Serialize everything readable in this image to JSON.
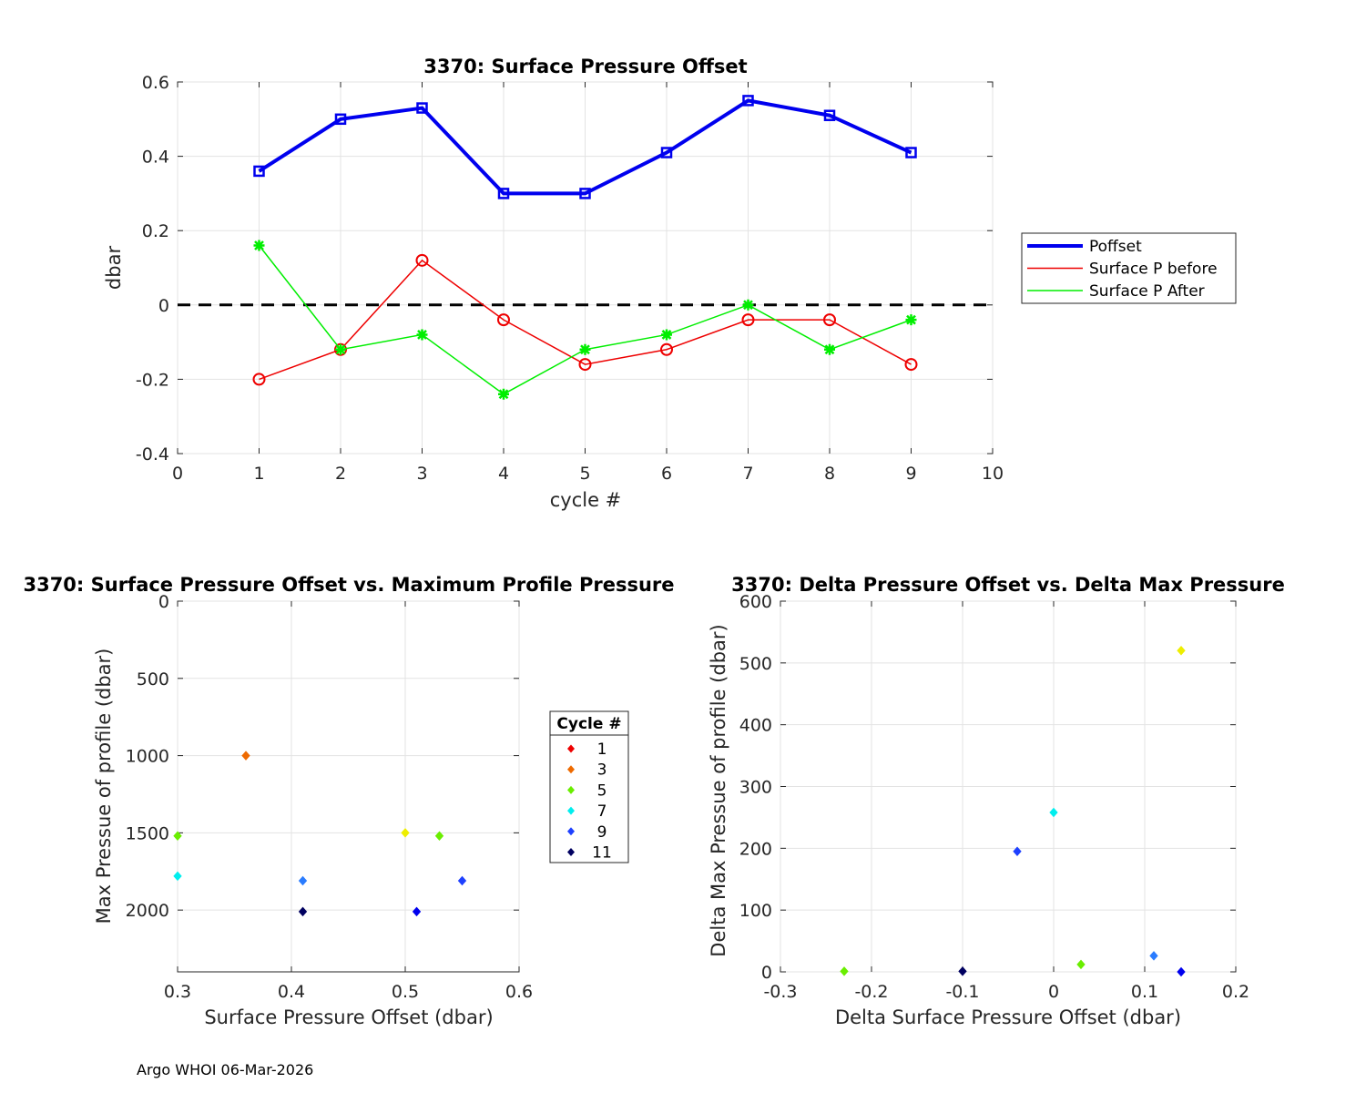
{
  "footer": "Argo WHOI 06-Mar-2026",
  "chart_data": [
    {
      "type": "line",
      "title": "3370: Surface Pressure Offset",
      "xlabel": "cycle #",
      "ylabel": "dbar",
      "xlim": [
        0,
        10
      ],
      "ylim": [
        -0.4,
        0.6
      ],
      "xticks": [
        "0",
        "1",
        "2",
        "3",
        "4",
        "5",
        "6",
        "7",
        "8",
        "9",
        "10"
      ],
      "yticks": [
        "-0.4",
        "-0.2",
        "0",
        "0.2",
        "0.4",
        "0.6"
      ],
      "grid": true,
      "reference_line": 0,
      "legend_position": "outside-right",
      "x": [
        1,
        2,
        3,
        4,
        5,
        6,
        7,
        8,
        9
      ],
      "series": [
        {
          "name": "Poffset",
          "color": "#0000ee",
          "marker": "square",
          "values": [
            0.36,
            0.5,
            0.53,
            0.3,
            0.3,
            0.41,
            0.55,
            0.51,
            0.41
          ]
        },
        {
          "name": "Surface P before",
          "color": "#ee0000",
          "marker": "circle",
          "values": [
            -0.2,
            -0.12,
            0.12,
            -0.04,
            -0.16,
            -0.12,
            -0.04,
            -0.04,
            -0.16
          ]
        },
        {
          "name": "Surface P After",
          "color": "#00ee00",
          "marker": "asterisk",
          "values": [
            0.16,
            -0.12,
            -0.08,
            -0.24,
            -0.12,
            -0.08,
            0.0,
            -0.12,
            -0.04
          ]
        }
      ]
    },
    {
      "type": "scatter",
      "title": "3370: Surface Pressure Offset vs. Maximum Profile Pressure",
      "xlabel": "Surface Pressure Offset (dbar)",
      "ylabel": "Max Pressue of profile (dbar)",
      "xlim": [
        0.3,
        0.6
      ],
      "ylim": [
        0,
        2400
      ],
      "y_reversed": true,
      "xticks": [
        "0.3",
        "0.4",
        "0.5",
        "0.6"
      ],
      "yticks": [
        "0",
        "500",
        "1000",
        "1500",
        "2000"
      ],
      "grid": true,
      "legend_title": "Cycle #",
      "legend": [
        {
          "label": "1",
          "color": "#ee0000"
        },
        {
          "label": "3",
          "color": "#ee6a00"
        },
        {
          "label": "5",
          "color": "#6aee00"
        },
        {
          "label": "7",
          "color": "#00eeee"
        },
        {
          "label": "9",
          "color": "#1e40ff"
        },
        {
          "label": "11",
          "color": "#000060"
        }
      ],
      "points": [
        {
          "x": 0.36,
          "y": 1000,
          "color": "#ee6a00"
        },
        {
          "x": 0.3,
          "y": 1520,
          "color": "#6aee00"
        },
        {
          "x": 0.3,
          "y": 1780,
          "color": "#00eeee"
        },
        {
          "x": 0.41,
          "y": 1810,
          "color": "#2a7cff"
        },
        {
          "x": 0.41,
          "y": 2010,
          "color": "#000060"
        },
        {
          "x": 0.5,
          "y": 1500,
          "color": "#eeee00"
        },
        {
          "x": 0.53,
          "y": 1520,
          "color": "#6aee00"
        },
        {
          "x": 0.55,
          "y": 1810,
          "color": "#1e40ff"
        },
        {
          "x": 0.51,
          "y": 2010,
          "color": "#0000ee"
        }
      ]
    },
    {
      "type": "scatter",
      "title": "3370: Delta Pressure Offset vs. Delta Max Pressure",
      "xlabel": "Delta Surface Pressure Offset (dbar)",
      "ylabel": "Delta Max Pressue of profile (dbar)",
      "xlim": [
        -0.3,
        0.2
      ],
      "ylim": [
        0,
        600
      ],
      "xticks": [
        "-0.3",
        "-0.2",
        "-0.1",
        "0",
        "0.1",
        "0.2"
      ],
      "yticks": [
        "0",
        "100",
        "200",
        "300",
        "400",
        "500",
        "600"
      ],
      "grid": true,
      "points": [
        {
          "x": 0.14,
          "y": 520,
          "color": "#eeee00"
        },
        {
          "x": 0.0,
          "y": 258,
          "color": "#00eeee"
        },
        {
          "x": -0.04,
          "y": 195,
          "color": "#1e40ff"
        },
        {
          "x": 0.11,
          "y": 26,
          "color": "#2a7cff"
        },
        {
          "x": 0.03,
          "y": 12,
          "color": "#6aee00"
        },
        {
          "x": -0.23,
          "y": 1,
          "color": "#6aee00"
        },
        {
          "x": -0.1,
          "y": 1,
          "color": "#000060"
        },
        {
          "x": 0.14,
          "y": 0,
          "color": "#0000ee"
        }
      ]
    }
  ]
}
